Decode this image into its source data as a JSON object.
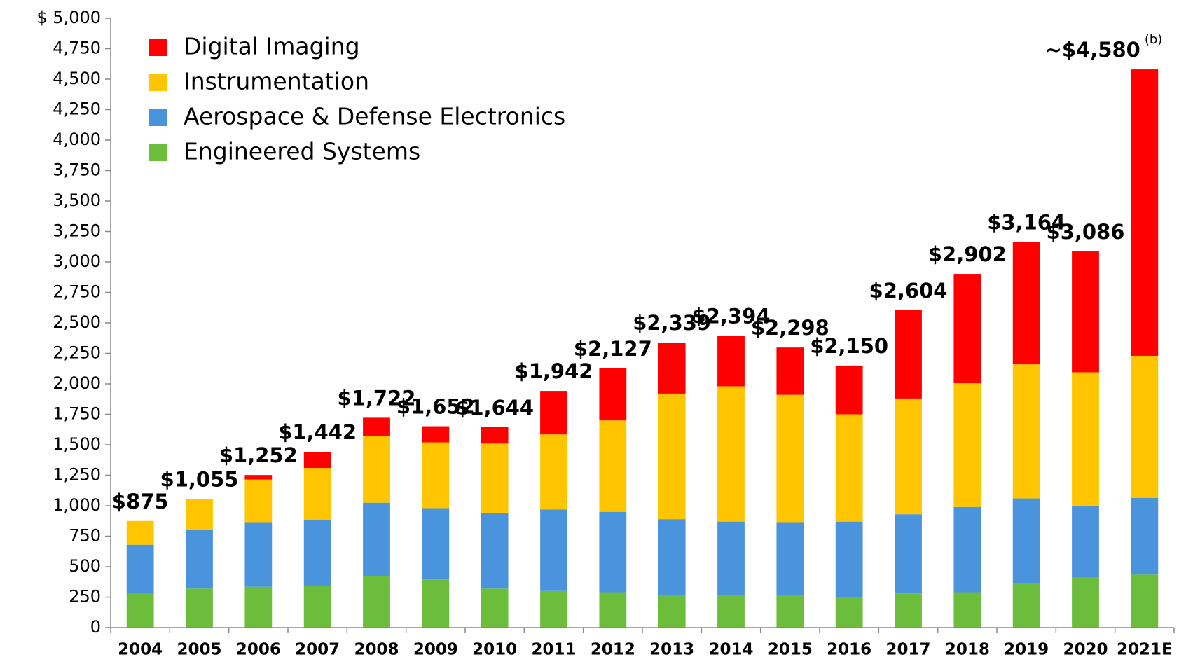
{
  "chart_data": {
    "type": "stacked-bar",
    "categories": [
      "2004",
      "2005",
      "2006",
      "2007",
      "2008",
      "2009",
      "2010",
      "2011",
      "2012",
      "2013",
      "2014",
      "2015",
      "2016",
      "2017",
      "2018",
      "2019",
      "2020",
      "2021E"
    ],
    "series": [
      {
        "name": "Engineered Systems",
        "color": "#6cbd3c",
        "values": [
          285,
          320,
          335,
          345,
          420,
          395,
          320,
          300,
          290,
          270,
          260,
          265,
          250,
          280,
          290,
          365,
          410,
          435
        ]
      },
      {
        "name": "Aerospace & Defense Electronics",
        "color": "#4a94de",
        "values": [
          395,
          485,
          530,
          535,
          605,
          585,
          620,
          670,
          660,
          620,
          610,
          600,
          620,
          650,
          700,
          695,
          590,
          630
        ]
      },
      {
        "name": "Instrumentation",
        "color": "#ffc600",
        "values": [
          195,
          250,
          350,
          430,
          545,
          540,
          570,
          615,
          750,
          1030,
          1110,
          1045,
          880,
          950,
          1015,
          1100,
          1095,
          1165
        ]
      },
      {
        "name": "Digital Imaging",
        "color": "#ff0000",
        "values": [
          0,
          0,
          37,
          132,
          152,
          132,
          134,
          357,
          427,
          419,
          414,
          388,
          400,
          724,
          897,
          1004,
          991,
          2350
        ]
      }
    ],
    "totals": [
      875,
      1055,
      1252,
      1442,
      1722,
      1652,
      1644,
      1942,
      2127,
      2339,
      2394,
      2298,
      2150,
      2604,
      2902,
      3164,
      3086,
      4580
    ],
    "total_labels": [
      "$875",
      "$1,055",
      "$1,252",
      "$1,442",
      "$1,722",
      "$1,652",
      "$1,644",
      "$1,942",
      "$2,127",
      "$2,339",
      "$2,394",
      "$2,298",
      "$2,150",
      "$2,604",
      "$2,902",
      "$3,164",
      "$3,086",
      "~$4,580"
    ],
    "annotation": "(b)",
    "ylim": [
      0,
      5000
    ],
    "yticks": [
      0,
      250,
      500,
      750,
      {
        "value": 1000,
        "label": "1,000"
      },
      {
        "value": 1250,
        "label": "1,250"
      },
      {
        "value": 1500,
        "label": "1,500"
      },
      {
        "value": 1750,
        "label": "1,750"
      },
      {
        "value": 2000,
        "label": "2,000"
      },
      {
        "value": 2250,
        "label": "2,250"
      },
      {
        "value": 2500,
        "label": "2,500"
      },
      {
        "value": 2750,
        "label": "2,750"
      },
      {
        "value": 3000,
        "label": "3,000"
      },
      {
        "value": 3250,
        "label": "3,250"
      },
      {
        "value": 3500,
        "label": "3,500"
      },
      {
        "value": 3750,
        "label": "3,750"
      },
      {
        "value": 4000,
        "label": "4,000"
      },
      {
        "value": 4250,
        "label": "4,250"
      },
      {
        "value": 4500,
        "label": "4,500"
      },
      {
        "value": 4750,
        "label": "4,750"
      },
      {
        "value": 5000,
        "label": "$ 5,000"
      }
    ],
    "legend": "top-left"
  }
}
